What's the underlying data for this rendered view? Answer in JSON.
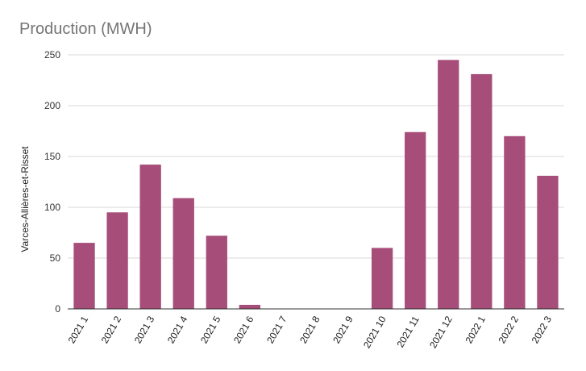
{
  "chart_data": {
    "type": "bar",
    "title": "Production (MWH)",
    "xlabel": "",
    "ylabel": "Varces-Allières-et-Risset",
    "categories": [
      "2021 1",
      "2021 2",
      "2021 3",
      "2021 4",
      "2021 5",
      "2021 6",
      "2021 7",
      "2021 8",
      "2021 9",
      "2021 10",
      "2021 11",
      "2021 12",
      "2022 1",
      "2022 2",
      "2022 3"
    ],
    "values": [
      65,
      95,
      142,
      109,
      72,
      4,
      0,
      0,
      0,
      60,
      174,
      245,
      231,
      170,
      131
    ],
    "ylim": [
      0,
      250
    ],
    "yticks": [
      0,
      50,
      100,
      150,
      200,
      250
    ],
    "grid": true,
    "legend": "none",
    "bar_color": "#a64d79",
    "grid_color": "#d9d9d9",
    "axis_color": "#333333",
    "title_color": "#757575"
  }
}
